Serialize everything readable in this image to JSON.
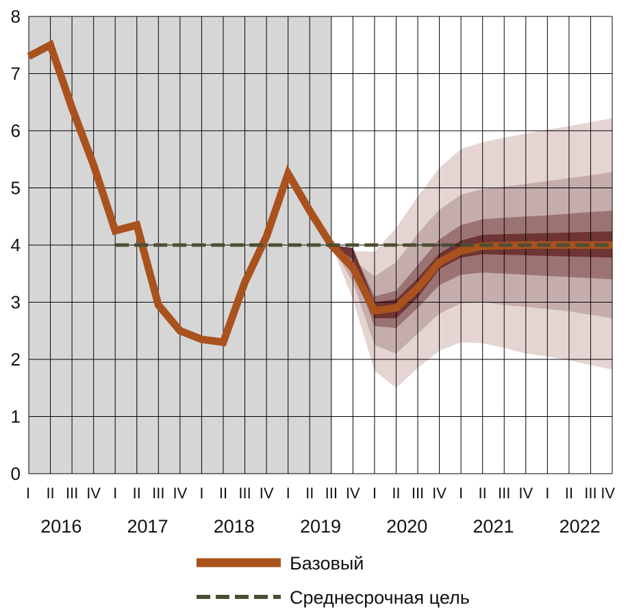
{
  "chart_data": {
    "type": "line",
    "title": "",
    "xlabel": "",
    "ylabel": "",
    "ylim": [
      0,
      8
    ],
    "yticks": [
      0,
      1,
      2,
      3,
      4,
      5,
      6,
      7,
      8
    ],
    "grid": true,
    "quarter_labels": [
      "I",
      "II",
      "III",
      "IV"
    ],
    "years": [
      "2016",
      "2017",
      "2018",
      "2019",
      "2020",
      "2021",
      "2022"
    ],
    "history_shading": {
      "from_quarter_index": 0,
      "to_quarter_index": 14,
      "color": "#d6d6d6"
    },
    "series": [
      {
        "name": "Базовый",
        "color": "#a9521d",
        "style": "solid",
        "x": [
          0,
          1,
          2,
          3,
          4,
          5,
          6,
          7,
          8,
          9,
          10,
          11,
          12,
          13,
          14,
          15,
          16,
          17,
          18,
          19,
          20,
          21,
          22,
          23,
          24,
          25,
          26,
          27
        ],
        "values": [
          7.3,
          7.5,
          6.4,
          5.4,
          4.25,
          4.35,
          2.95,
          2.5,
          2.35,
          2.3,
          3.35,
          4.15,
          5.25,
          4.6,
          4.0,
          3.6,
          2.85,
          2.9,
          3.25,
          3.7,
          3.9,
          3.98,
          3.99,
          4.0,
          4.0,
          4.0,
          4.0,
          4.0
        ]
      },
      {
        "name": "Среднесрочная цель",
        "color": "#4d4d33",
        "style": "dashed",
        "x": [
          4,
          27
        ],
        "values": [
          4.0,
          4.0
        ]
      }
    ],
    "fan_chart": {
      "x": [
        14,
        15,
        16,
        17,
        18,
        19,
        20,
        21,
        22,
        23,
        24,
        25,
        26,
        27
      ],
      "bands": [
        {
          "level": "outer",
          "color": "#e5d5d2",
          "lower": [
            4.0,
            3.05,
            1.8,
            1.5,
            1.85,
            2.15,
            2.3,
            2.28,
            2.2,
            2.1,
            2.05,
            1.98,
            1.9,
            1.82
          ],
          "upper": [
            4.0,
            3.9,
            3.88,
            4.3,
            4.85,
            5.35,
            5.68,
            5.8,
            5.88,
            5.95,
            6.02,
            6.08,
            6.15,
            6.22
          ]
        },
        {
          "level": "second",
          "color": "#c6adad",
          "lower": [
            4.0,
            3.35,
            2.25,
            2.1,
            2.45,
            2.8,
            2.98,
            3.0,
            2.95,
            2.92,
            2.88,
            2.84,
            2.78,
            2.72
          ],
          "upper": [
            4.0,
            3.75,
            3.45,
            3.7,
            4.2,
            4.62,
            4.88,
            4.98,
            5.02,
            5.07,
            5.12,
            5.17,
            5.22,
            5.28
          ]
        },
        {
          "level": "third",
          "color": "#9c7373",
          "lower": [
            4.0,
            3.6,
            2.58,
            2.55,
            2.9,
            3.3,
            3.48,
            3.52,
            3.5,
            3.48,
            3.46,
            3.44,
            3.42,
            3.4
          ],
          "upper": [
            4.0,
            3.9,
            3.1,
            3.2,
            3.65,
            4.1,
            4.35,
            4.45,
            4.48,
            4.5,
            4.52,
            4.55,
            4.58,
            4.6
          ]
        },
        {
          "level": "inner",
          "color": "#6f3535",
          "lower": [
            4.0,
            3.75,
            2.72,
            2.72,
            3.08,
            3.58,
            3.78,
            3.84,
            3.83,
            3.82,
            3.81,
            3.8,
            3.79,
            3.78
          ],
          "upper": [
            4.0,
            3.95,
            3.0,
            3.05,
            3.42,
            3.85,
            4.08,
            4.18,
            4.19,
            4.2,
            4.21,
            4.22,
            4.23,
            4.24
          ]
        }
      ]
    },
    "legend": {
      "placement": "bottom-center",
      "entries": [
        {
          "label": "Базовый",
          "color": "#a9521d",
          "style": "solid"
        },
        {
          "label": "Среднесрочная цель",
          "color": "#4d4d33",
          "style": "dashed"
        }
      ]
    }
  }
}
